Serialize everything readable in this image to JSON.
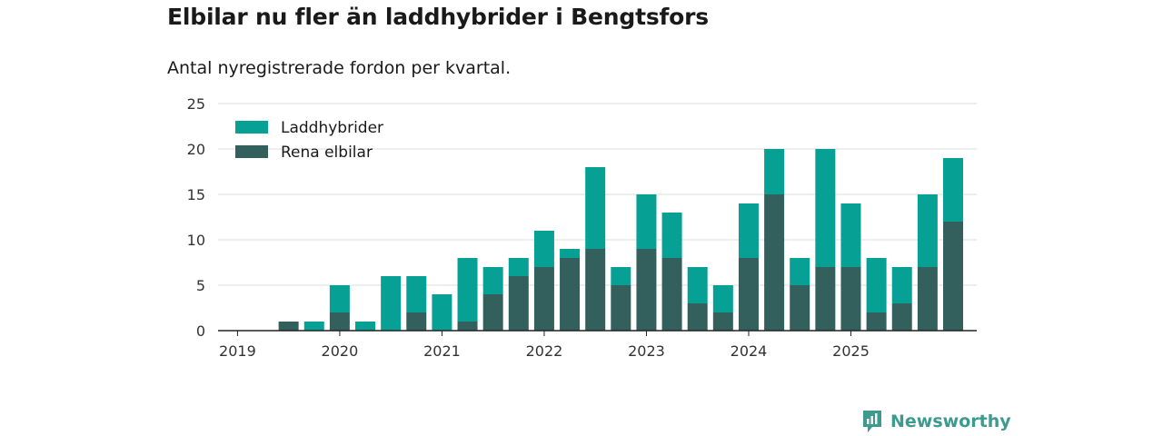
{
  "title": "Elbilar nu fler än laddhybrider i Bengtsfors",
  "subtitle": "Antal nyregistrerade fordon per kvartal.",
  "brand": "Newsworthy",
  "colors": {
    "laddhybrider": "#06a094",
    "rena_elbilar": "#33605c",
    "grid": "#dddddd",
    "axis": "#222222",
    "brand": "#3d9a8e"
  },
  "chart_data": {
    "type": "bar",
    "stacked": true,
    "title": "Elbilar nu fler än laddhybrider i Bengtsfors",
    "subtitle": "Antal nyregistrerade fordon per kvartal.",
    "ylim": [
      0,
      25
    ],
    "yticks": [
      0,
      5,
      10,
      15,
      20,
      25
    ],
    "xtick_labels": [
      "2019",
      "2020",
      "2021",
      "2022",
      "2023",
      "2024",
      "2025"
    ],
    "legend_position": "top-left",
    "categories": [
      "2019 Q1",
      "2019 Q2",
      "2019 Q3",
      "2019 Q4",
      "2020 Q1",
      "2020 Q2",
      "2020 Q3",
      "2020 Q4",
      "2021 Q1",
      "2021 Q2",
      "2021 Q3",
      "2021 Q4",
      "2022 Q1",
      "2022 Q2",
      "2022 Q3",
      "2022 Q4",
      "2023 Q1",
      "2023 Q2",
      "2023 Q3",
      "2023 Q4",
      "2024 Q1",
      "2024 Q2",
      "2024 Q3",
      "2024 Q4",
      "2025 Q1",
      "2025 Q2",
      "2025 Q3",
      "2025 Q4"
    ],
    "series": [
      {
        "name": "Rena elbilar",
        "values": [
          0,
          1,
          0,
          2,
          0,
          0,
          2,
          0,
          1,
          4,
          6,
          7,
          8,
          9,
          5,
          9,
          8,
          3,
          2,
          8,
          15,
          5,
          7,
          7,
          2,
          3,
          7,
          12
        ]
      },
      {
        "name": "Laddhybrider",
        "values": [
          0,
          0,
          1,
          3,
          1,
          6,
          4,
          4,
          7,
          3,
          2,
          4,
          1,
          9,
          2,
          6,
          5,
          4,
          3,
          6,
          5,
          3,
          13,
          7,
          6,
          4,
          8,
          7
        ]
      }
    ]
  }
}
